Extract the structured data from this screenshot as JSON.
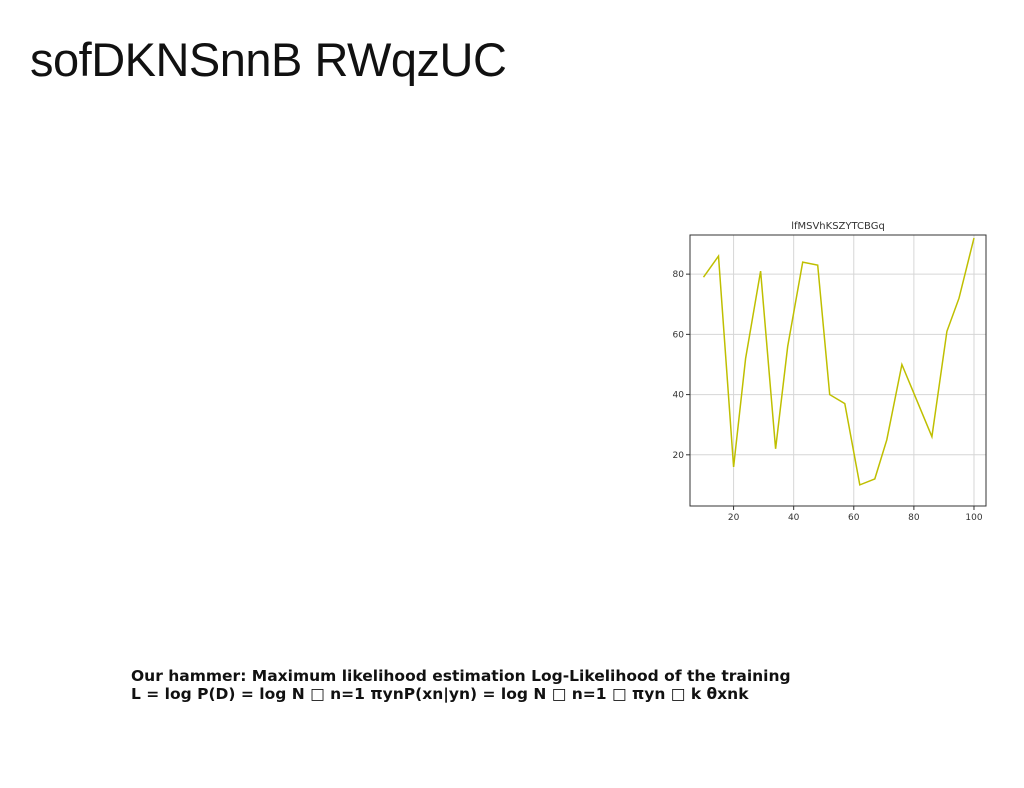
{
  "slide": {
    "title": "sofDKNSnnB RWqzUC"
  },
  "body_text": {
    "line1": "Our hammer: Maximum likelihood estimation Log-Likelihood of the training",
    "line2": "L = log P(D) = log N □ n=1 πynP(xn|yn) = log N □ n=1 □ πyn □ k θxnk"
  },
  "chart_data": {
    "type": "line",
    "title": "lfMSVhKSZYTCBGq",
    "xlabel": "",
    "ylabel": "",
    "xlim": [
      5.5,
      104
    ],
    "ylim": [
      3,
      93
    ],
    "xticks": [
      20,
      40,
      60,
      80,
      100
    ],
    "yticks": [
      20,
      40,
      60,
      80
    ],
    "grid": true,
    "series": [
      {
        "color": "#bfbf00",
        "x": [
          10,
          15,
          20,
          24,
          29,
          34,
          38,
          43,
          48,
          52,
          57,
          62,
          67,
          71,
          76,
          81,
          86,
          91,
          95,
          100
        ],
        "y": [
          79,
          86,
          16,
          52,
          81,
          22,
          56,
          84,
          83,
          40,
          37,
          10,
          12,
          25,
          50,
          38,
          26,
          61,
          72,
          92
        ]
      }
    ]
  }
}
